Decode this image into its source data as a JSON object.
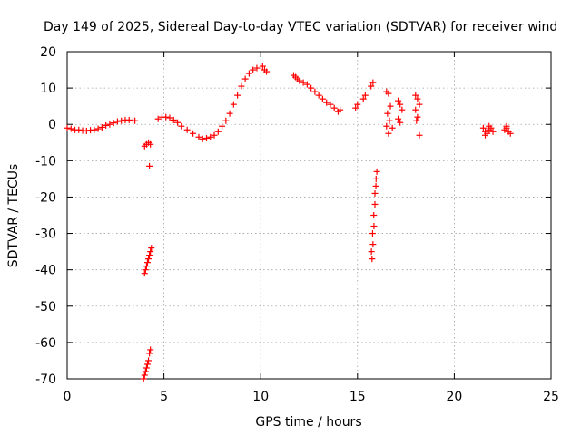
{
  "chart_data": {
    "type": "scatter",
    "title": "Day 149 of 2025, Sidereal Day-to-day VTEC variation (SDTVAR) for receiver wind",
    "xlabel": "GPS time / hours",
    "ylabel": "SDTVAR / TECUs",
    "xlim": [
      0,
      25
    ],
    "ylim": [
      -70,
      20
    ],
    "xticks": [
      0,
      5,
      10,
      15,
      20,
      25
    ],
    "yticks": [
      20,
      10,
      0,
      -10,
      -20,
      -30,
      -40,
      -50,
      -60,
      -70
    ],
    "grid": true,
    "marker": "+",
    "color": "#ff0000",
    "series": [
      {
        "name": "SDTVAR",
        "x": [
          0.0,
          0.2,
          0.4,
          0.6,
          0.8,
          1.0,
          1.2,
          1.4,
          1.6,
          1.8,
          2.0,
          2.2,
          2.4,
          2.6,
          2.8,
          3.0,
          3.2,
          3.4,
          3.5,
          4.0,
          4.1,
          4.2,
          4.3,
          4.25,
          4.0,
          4.05,
          4.1,
          4.15,
          4.2,
          4.25,
          4.3,
          4.35,
          3.95,
          4.0,
          4.05,
          4.1,
          4.15,
          4.2,
          4.25,
          4.3,
          4.7,
          4.9,
          5.1,
          5.3,
          5.5,
          5.7,
          5.9,
          6.2,
          6.5,
          6.8,
          7.0,
          7.2,
          7.4,
          7.6,
          7.8,
          8.0,
          8.2,
          8.4,
          8.6,
          8.8,
          9.0,
          9.2,
          9.4,
          9.6,
          9.8,
          10.1,
          10.2,
          10.3,
          11.7,
          11.8,
          11.9,
          12.0,
          12.2,
          12.4,
          12.6,
          12.8,
          13.0,
          13.2,
          13.4,
          13.6,
          13.8,
          14.0,
          14.1,
          14.9,
          15.0,
          15.3,
          15.4,
          15.7,
          15.8,
          15.75,
          15.8,
          15.85,
          15.9,
          15.95,
          16.0,
          15.72,
          15.78,
          15.84,
          15.9,
          15.96,
          16.5,
          16.6,
          16.7,
          16.55,
          16.65,
          16.8,
          16.6,
          16.5,
          17.1,
          17.2,
          17.3,
          17.1,
          17.2,
          18.0,
          18.1,
          18.2,
          18.0,
          18.1,
          18.2,
          18.05,
          21.5,
          21.6,
          21.7,
          21.8,
          21.9,
          22.0,
          21.6,
          21.8,
          22.6,
          22.7,
          22.8,
          22.9,
          22.7
        ],
        "y": [
          -1.0,
          -1.2,
          -1.5,
          -1.5,
          -1.7,
          -1.8,
          -1.6,
          -1.5,
          -1.2,
          -0.8,
          -0.3,
          0.0,
          0.4,
          0.8,
          1.0,
          1.2,
          1.2,
          1.0,
          1.0,
          -6,
          -5.5,
          -5,
          -5.5,
          -11.5,
          -41,
          -40,
          -39,
          -38,
          -37,
          -36,
          -35,
          -34,
          -70,
          -69,
          -68,
          -67,
          -66,
          -65,
          -63,
          -62,
          1.5,
          2.0,
          2.0,
          1.8,
          1.2,
          0.5,
          -0.5,
          -1.5,
          -2.5,
          -3.5,
          -4.0,
          -3.8,
          -3.5,
          -3.0,
          -2.0,
          -0.5,
          1.0,
          3.0,
          5.5,
          8.0,
          10.5,
          12.5,
          14.0,
          15.0,
          15.5,
          16.0,
          15.0,
          14.5,
          13.5,
          13.0,
          12.5,
          12.0,
          11.5,
          11.0,
          10.0,
          9.0,
          8.0,
          7.0,
          6.0,
          5.5,
          4.5,
          3.5,
          4.0,
          4.5,
          5.5,
          7.0,
          8.0,
          10.5,
          11.5,
          -37,
          -33,
          -28,
          -22,
          -17,
          -13,
          -35,
          -30,
          -25,
          -19,
          -15,
          9.0,
          8.5,
          5.0,
          3.0,
          1.0,
          -1.0,
          -2.5,
          -0.5,
          6.5,
          5.5,
          4.0,
          1.5,
          0.5,
          8.0,
          7.0,
          5.5,
          4.0,
          2.0,
          -3.0,
          1.0,
          -1.0,
          -2.0,
          -2.5,
          -1.5,
          -1.0,
          -2.0,
          -3.0,
          -0.5,
          -1.5,
          -1.0,
          -2.0,
          -2.5,
          -0.5
        ]
      }
    ]
  }
}
